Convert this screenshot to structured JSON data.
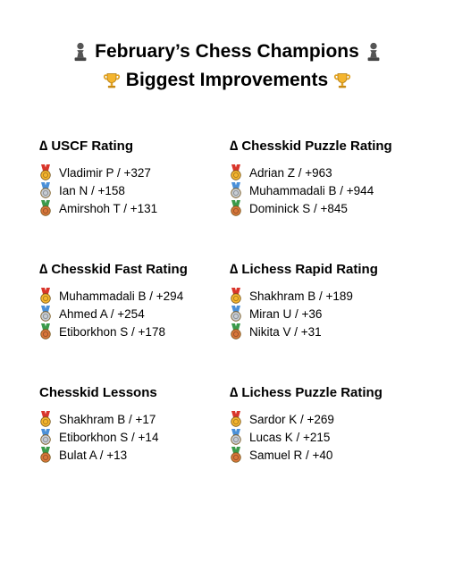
{
  "title": {
    "line1": "February’s Chess Champions",
    "line2": "Biggest Improvements",
    "icons": [
      "chess-pawn-icon",
      "trophy-icon"
    ]
  },
  "colors": {
    "gold": "#f5b52e",
    "silver": "#c7ccd3",
    "bronze": "#d9773a",
    "ribbon_red": "#d9352b",
    "ribbon_blue": "#4a90d9",
    "ribbon_green": "#3a9a4a"
  },
  "sections": [
    {
      "heading": "∆ USCF Rating",
      "entries": [
        "Vladimir P / +327",
        "Ian N / +158",
        "Amirshoh T / +131"
      ]
    },
    {
      "heading": "∆ Chesskid Puzzle Rating",
      "entries": [
        "Adrian Z / +963",
        "Muhammadali B / +944",
        "Dominick S / +845"
      ]
    },
    {
      "heading": "∆ Chesskid Fast Rating",
      "entries": [
        "Muhammadali B / +294",
        "Ahmed A / +254",
        "Etiborkhon S / +178"
      ]
    },
    {
      "heading": "∆ Lichess Rapid Rating",
      "entries": [
        "Shakhram B / +189",
        "Miran U / +36",
        "Nikita V / +31"
      ]
    },
    {
      "heading": "Chesskid Lessons",
      "entries": [
        "Shakhram B / +17",
        "Etiborkhon S / +14",
        "Bulat A / +13"
      ]
    },
    {
      "heading": "∆ Lichess Puzzle Rating",
      "entries": [
        "Sardor K / +269",
        "Lucas K / +215",
        "Samuel R / +40"
      ]
    }
  ]
}
